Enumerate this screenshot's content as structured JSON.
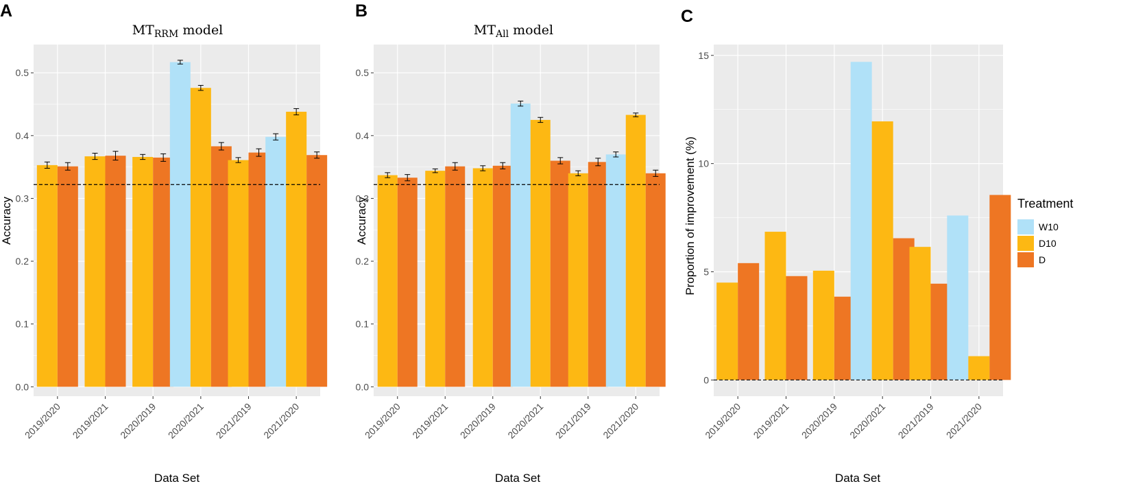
{
  "colors": {
    "W10": "#B0E1F8",
    "D10": "#FDB813",
    "D": "#EE7623",
    "panel_bg": "#EBEBEB",
    "grid": "#FFFFFF"
  },
  "chart_data": [
    {
      "panel": "A",
      "type": "bar",
      "title": "MT",
      "title_subscript": "RRM",
      "title_suffix": " model",
      "xlabel": "Data Set",
      "ylabel": "Accuracy",
      "ylim": [
        -0.015,
        0.545
      ],
      "yticks": [
        "0.0",
        "0.1",
        "0.2",
        "0.3",
        "0.4",
        "0.5"
      ],
      "baseline": 0.322,
      "categories": [
        "2019/2020",
        "2019/2021",
        "2020/2019",
        "2020/2021",
        "2021/2019",
        "2021/2020"
      ],
      "series": [
        {
          "name": "W10",
          "values": [
            null,
            null,
            null,
            0.517,
            null,
            0.398
          ],
          "errors": [
            null,
            null,
            null,
            0.003,
            null,
            0.005
          ]
        },
        {
          "name": "D10",
          "values": [
            0.353,
            0.367,
            0.366,
            0.476,
            0.361,
            0.438
          ],
          "errors": [
            0.005,
            0.005,
            0.004,
            0.004,
            0.004,
            0.005
          ]
        },
        {
          "name": "D",
          "values": [
            0.351,
            0.368,
            0.365,
            0.383,
            0.373,
            0.369
          ],
          "errors": [
            0.006,
            0.007,
            0.006,
            0.006,
            0.006,
            0.005
          ]
        }
      ]
    },
    {
      "panel": "B",
      "type": "bar",
      "title": "MT",
      "title_subscript": "All",
      "title_suffix": " model",
      "xlabel": "Data Set",
      "ylabel": "Accuracy",
      "ylim": [
        -0.015,
        0.545
      ],
      "yticks": [
        "0.0",
        "0.1",
        "0.2",
        "0.3",
        "0.4",
        "0.5"
      ],
      "baseline": 0.322,
      "categories": [
        "2019/2020",
        "2019/2021",
        "2020/2019",
        "2020/2021",
        "2021/2019",
        "2021/2020"
      ],
      "series": [
        {
          "name": "W10",
          "values": [
            null,
            null,
            null,
            0.451,
            null,
            0.37
          ],
          "errors": [
            null,
            null,
            null,
            0.004,
            null,
            0.004
          ]
        },
        {
          "name": "D10",
          "values": [
            0.337,
            0.344,
            0.348,
            0.425,
            0.34,
            0.433
          ],
          "errors": [
            0.004,
            0.003,
            0.004,
            0.004,
            0.004,
            0.003
          ]
        },
        {
          "name": "D",
          "values": [
            0.333,
            0.351,
            0.352,
            0.36,
            0.358,
            0.34
          ],
          "errors": [
            0.005,
            0.006,
            0.005,
            0.005,
            0.006,
            0.005
          ]
        }
      ]
    },
    {
      "panel": "C",
      "type": "bar",
      "title": "",
      "xlabel": "Data Set",
      "ylabel": "Proportion of improvement (%)",
      "ylim": [
        -0.75,
        15.5
      ],
      "yticks": [
        "0",
        "5",
        "10",
        "15"
      ],
      "baseline": 0,
      "categories": [
        "2019/2020",
        "2019/2021",
        "2020/2019",
        "2020/2021",
        "2021/2019",
        "2021/2020"
      ],
      "series": [
        {
          "name": "W10",
          "values": [
            null,
            null,
            null,
            14.7,
            null,
            7.6
          ]
        },
        {
          "name": "D10",
          "values": [
            4.5,
            6.85,
            5.05,
            11.95,
            6.15,
            1.1
          ]
        },
        {
          "name": "D",
          "values": [
            5.4,
            4.8,
            3.85,
            6.55,
            4.45,
            8.55
          ]
        }
      ]
    }
  ],
  "legend": {
    "title": "Treatment",
    "items": [
      {
        "key": "W10",
        "label": "W10"
      },
      {
        "key": "D10",
        "label": "D10"
      },
      {
        "key": "D",
        "label": "D"
      }
    ]
  }
}
